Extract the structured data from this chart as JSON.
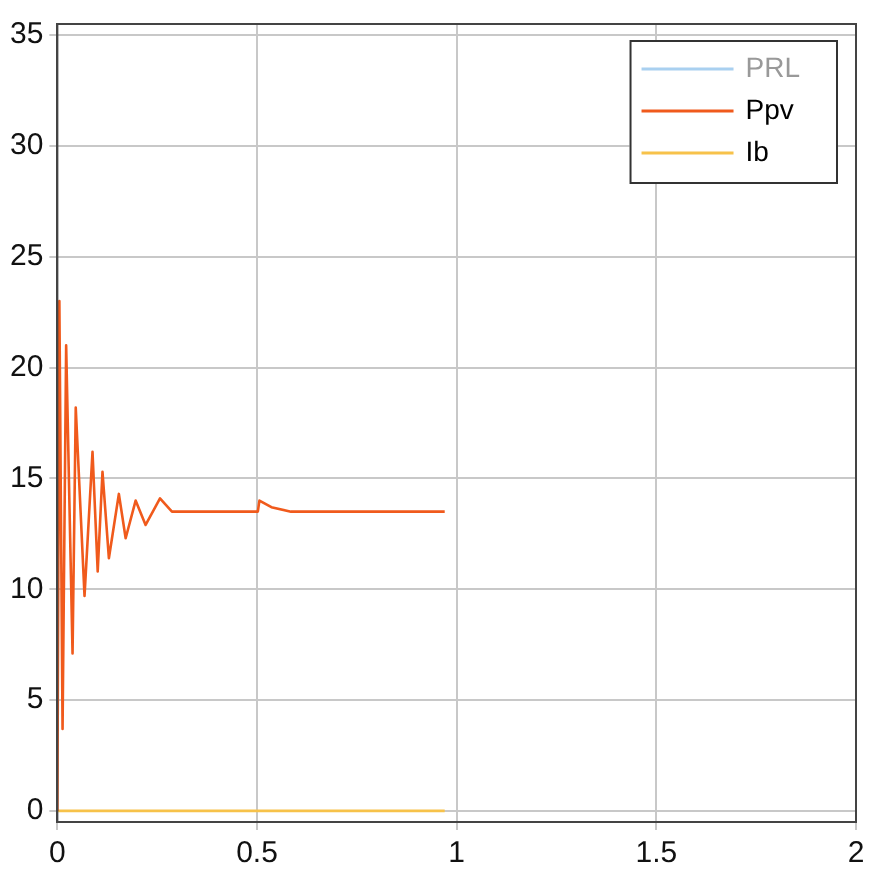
{
  "chart_data": {
    "type": "line",
    "x": [
      0,
      0.005,
      0.013,
      0.022,
      0.038,
      0.046,
      0.068,
      0.088,
      0.101,
      0.113,
      0.129,
      0.154,
      0.171,
      0.196,
      0.221,
      0.257,
      0.287,
      0.35,
      0.502,
      0.506,
      0.536,
      0.585,
      0.97
    ],
    "series": [
      {
        "name": "PRL",
        "color": "#a9d0f0",
        "values": [
          null,
          null,
          null,
          null,
          null,
          null,
          null,
          null,
          null,
          null,
          null,
          null,
          null,
          null,
          null,
          null,
          null,
          null,
          null,
          null,
          null,
          null,
          null
        ]
      },
      {
        "name": "Ppv",
        "color": "#f05a1c",
        "values": [
          0,
          23.0,
          3.7,
          21.0,
          7.1,
          18.2,
          9.7,
          16.2,
          10.8,
          15.3,
          11.4,
          14.3,
          12.3,
          14.0,
          12.9,
          14.1,
          13.5,
          13.5,
          13.5,
          14.0,
          13.7,
          13.5,
          13.5
        ]
      },
      {
        "name": "Ib",
        "color": "#f7c24a",
        "values": [
          0,
          0,
          0,
          0,
          0,
          0,
          0,
          0,
          0,
          0,
          0,
          0,
          0,
          0,
          0,
          0,
          0,
          0,
          0,
          0,
          0,
          0,
          0
        ]
      }
    ],
    "xlim": [
      0,
      2
    ],
    "xticks": [
      0,
      0.5,
      1,
      1.5,
      2
    ],
    "ylim": [
      -0.5,
      35.5
    ],
    "yticks": [
      0,
      5,
      10,
      15,
      20,
      25,
      30,
      35
    ],
    "grid": true,
    "legend": "top right",
    "marker": "none",
    "line_style": "solid"
  }
}
